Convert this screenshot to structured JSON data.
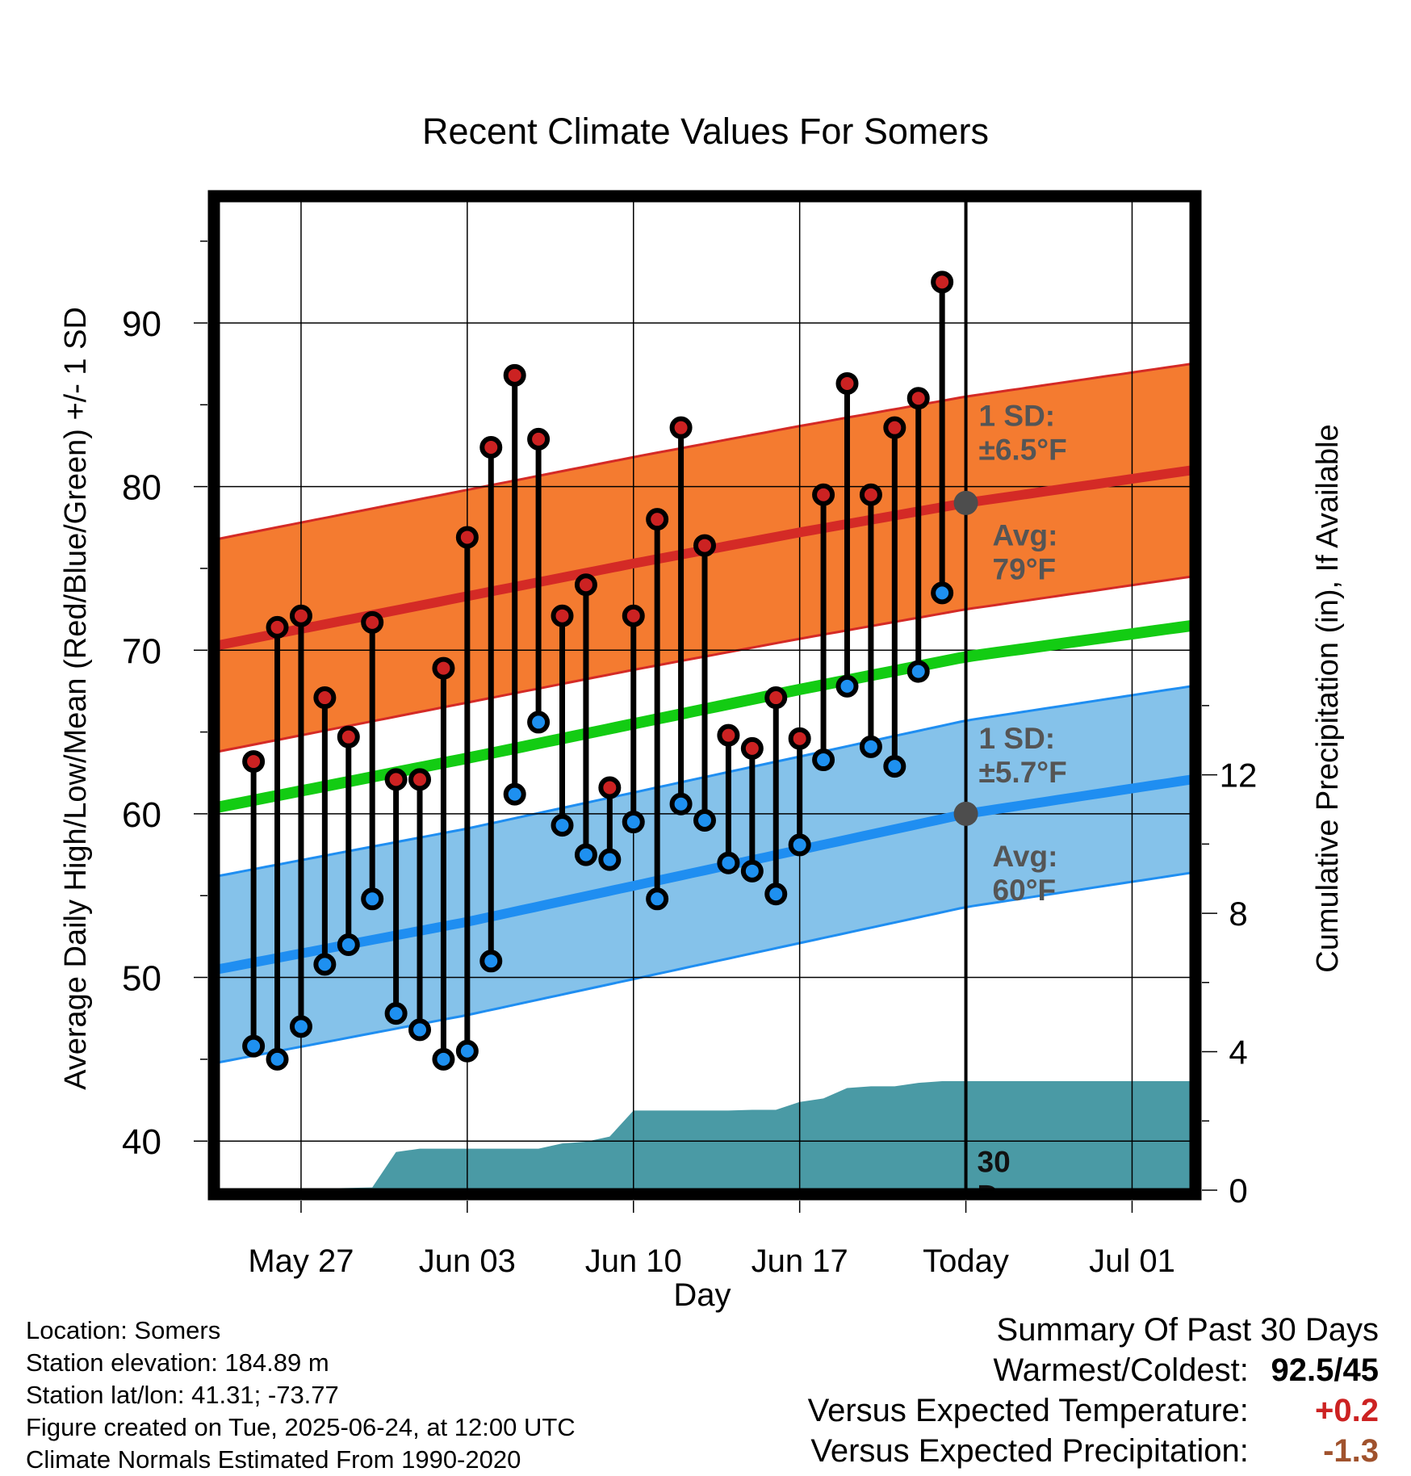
{
  "chart_data": {
    "type": "line",
    "title": "Recent Climate Values For Somers",
    "xlabel": "Day",
    "ylabel": "Average Daily High/Low/Mean (Red/Blue/Green) +/- 1 SD",
    "ylabel_right": "Cumulative Precipitation (in), If Available",
    "ylim": [
      37,
      97.5
    ],
    "ylim_right": [
      0,
      28.6
    ],
    "y_ticks": [
      40,
      50,
      60,
      70,
      80,
      90
    ],
    "y_ticks_right": [
      0,
      4,
      8,
      12
    ],
    "x_tick_labels": [
      "May 27",
      "Jun 03",
      "Jun 10",
      "Jun 17",
      "Today",
      "Jul 01"
    ],
    "x_tick_days": [
      -28,
      -21,
      -14,
      -7,
      0,
      7
    ],
    "x_range_days": [
      -31.5,
      9.5
    ],
    "grid": true,
    "daily_days": [
      -30,
      -29,
      -28,
      -27,
      -26,
      -25,
      -24,
      -23,
      -22,
      -21,
      -20,
      -19,
      -18,
      -17,
      -16,
      -15,
      -14,
      -13,
      -12,
      -11,
      -10,
      -9,
      -8,
      -7,
      -6,
      -5,
      -4,
      -3,
      -2,
      -1
    ],
    "daily_high": [
      63.2,
      71.4,
      72.1,
      67.1,
      64.7,
      71.7,
      62.1,
      62.1,
      68.9,
      76.9,
      82.4,
      86.8,
      82.9,
      72.1,
      74.0,
      61.6,
      72.1,
      78.0,
      83.6,
      76.4,
      64.8,
      64.0,
      67.1,
      64.6,
      79.5,
      86.3,
      79.5,
      83.6,
      85.4,
      92.5
    ],
    "daily_low": [
      45.8,
      45.0,
      47.0,
      50.8,
      52.0,
      54.8,
      47.8,
      46.8,
      45.0,
      45.5,
      51.0,
      61.2,
      65.6,
      59.3,
      57.5,
      57.2,
      59.5,
      54.8,
      60.6,
      59.6,
      57.0,
      56.5,
      55.1,
      58.1,
      63.3,
      67.8,
      64.1,
      62.9,
      68.7,
      73.5
    ],
    "normal_high": {
      "days": [
        -31.5,
        -21,
        -14,
        -7,
        0,
        9.5
      ],
      "mean": [
        70.3,
        73.3,
        75.3,
        77.2,
        79.0,
        81.0
      ],
      "sd": 6.5
    },
    "normal_low": {
      "days": [
        -31.5,
        -21,
        -14,
        -7,
        0,
        9.5
      ],
      "mean": [
        50.5,
        53.4,
        55.6,
        57.8,
        60.0,
        62.1
      ],
      "sd": 5.7
    },
    "normal_mean": {
      "days": [
        -31.5,
        -21,
        -14,
        -7,
        0,
        9.5
      ],
      "mean": [
        60.4,
        63.4,
        65.5,
        67.6,
        69.6,
        71.5
      ]
    },
    "precip_cumulative": {
      "days": [
        -31.5,
        -29,
        -28,
        -27,
        -25,
        -24,
        -23,
        -20,
        -18,
        -17,
        -16,
        -15,
        -14,
        -12,
        -11,
        -10,
        -9,
        -8,
        -7,
        -6,
        -5,
        -4,
        -3,
        -2,
        -1,
        0,
        9.5
      ],
      "values": [
        0,
        0,
        0,
        0.05,
        0.08,
        1.1,
        1.2,
        1.2,
        1.2,
        1.35,
        1.4,
        1.55,
        2.3,
        2.3,
        2.3,
        2.3,
        2.32,
        2.32,
        2.55,
        2.65,
        2.95,
        3.0,
        3.0,
        3.1,
        3.15,
        3.15,
        3.15
      ]
    },
    "annotations": {
      "high_sd_label": [
        "1 SD:",
        "±6.5°F"
      ],
      "high_avg_label": [
        "Avg:",
        "79°F"
      ],
      "low_sd_label": [
        "1 SD:",
        "±5.7°F"
      ],
      "low_avg_label": [
        "Avg:",
        "60°F"
      ],
      "window_label": [
        "30",
        "Days"
      ],
      "today_high_avg": 79.0,
      "today_low_avg": 60.0
    },
    "colors": {
      "high_band": "#f47b30",
      "high_line": "#d42a26",
      "low_band": "#85c2ea",
      "low_line": "#1f8ef1",
      "mean_line": "#13cc13",
      "precip_fill": "#4a9aa5",
      "high_point": "#cc2222",
      "low_point": "#1e90f0",
      "annotation_text": "#555555"
    }
  },
  "footer": {
    "location": "Location: Somers",
    "elevation": "Station elevation: 184.89 m",
    "latlon": "Station lat/lon: 41.31; -73.77",
    "created": "Figure created on Tue, 2025-06-24, at 12:00 UTC",
    "normals": "Climate Normals Estimated From 1990-2020"
  },
  "summary": {
    "heading": "Summary Of Past 30 Days",
    "warm_cold_label": "Warmest/Coldest:",
    "warm_cold_value": "92.5/45",
    "temp_label": "Versus Expected Temperature:",
    "temp_value": "+0.2",
    "temp_color": "#cc2222",
    "precip_label": "Versus Expected Precipitation:",
    "precip_value": "-1.3",
    "precip_color": "#a0522d"
  }
}
